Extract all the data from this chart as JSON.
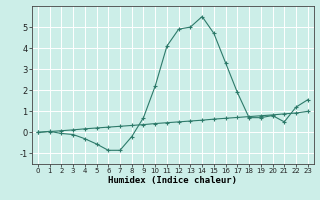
{
  "xlabel": "Humidex (Indice chaleur)",
  "background_color": "#cceee8",
  "grid_color": "#ffffff",
  "line_color": "#2d7a6a",
  "xlim": [
    -0.5,
    23.5
  ],
  "ylim": [
    -1.5,
    6.0
  ],
  "yticks": [
    -1,
    0,
    1,
    2,
    3,
    4,
    5
  ],
  "xticks": [
    0,
    1,
    2,
    3,
    4,
    5,
    6,
    7,
    8,
    9,
    10,
    11,
    12,
    13,
    14,
    15,
    16,
    17,
    18,
    19,
    20,
    21,
    22,
    23
  ],
  "series1_x": [
    0,
    1,
    2,
    3,
    4,
    5,
    6,
    7,
    8,
    9,
    10,
    11,
    12,
    13,
    14,
    15,
    16,
    17,
    18,
    19,
    20,
    21,
    22,
    23
  ],
  "series1_y": [
    0.0,
    0.05,
    -0.05,
    -0.1,
    -0.3,
    -0.55,
    -0.85,
    -0.85,
    -0.2,
    0.7,
    2.2,
    4.1,
    4.9,
    5.0,
    5.5,
    4.7,
    3.3,
    1.9,
    0.7,
    0.7,
    0.8,
    0.5,
    1.2,
    1.55
  ],
  "series2_x": [
    0,
    1,
    2,
    3,
    4,
    5,
    6,
    7,
    8,
    9,
    10,
    11,
    12,
    13,
    14,
    15,
    16,
    17,
    18,
    19,
    20,
    21,
    22,
    23
  ],
  "series2_y": [
    0.0,
    0.04,
    0.08,
    0.12,
    0.17,
    0.21,
    0.25,
    0.29,
    0.33,
    0.37,
    0.42,
    0.46,
    0.5,
    0.54,
    0.58,
    0.63,
    0.67,
    0.71,
    0.75,
    0.79,
    0.83,
    0.88,
    0.92,
    1.0
  ],
  "tick_fontsize_x": 5,
  "tick_fontsize_y": 6,
  "xlabel_fontsize": 6.5
}
